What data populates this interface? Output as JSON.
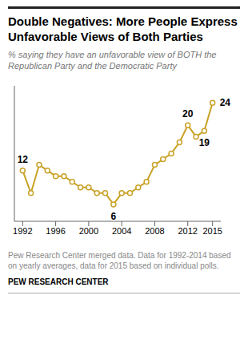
{
  "chart_data": {
    "type": "line",
    "title": "Double Negatives: More People Express Unfavorable Views of Both Parties",
    "subtitle": "% saying they have an unfavorable view of BOTH the Republican Party and the Democratic Party",
    "footnote": "Pew Research Center merged data. Data for 1992-2014 based on yearly averages, data for 2015 based on individual polls.",
    "source": "PEW RESEARCH CENTER",
    "color": "#C9A227",
    "marker": "circle",
    "x": [
      1992,
      1993,
      1994,
      1995,
      1996,
      1997,
      1998,
      1999,
      2000,
      2001,
      2002,
      2003,
      2004,
      2005,
      2006,
      2007,
      2008,
      2009,
      2010,
      2011,
      2012,
      2013,
      2014,
      2015
    ],
    "values": [
      12,
      8,
      13,
      12,
      11,
      11,
      10,
      9,
      9,
      8,
      8,
      6,
      8,
      8,
      9,
      10,
      13,
      14,
      15,
      17,
      20,
      18,
      19,
      24
    ],
    "annotations": [
      {
        "x": 1992,
        "y": 12,
        "text": "12"
      },
      {
        "x": 2003,
        "y": 6,
        "text": "6"
      },
      {
        "x": 2012,
        "y": 20,
        "text": "20"
      },
      {
        "x": 2014,
        "y": 19,
        "text": "19"
      },
      {
        "x": 2015,
        "y": 24,
        "text": "24"
      }
    ],
    "xlim": [
      1991.0,
      2016.0
    ],
    "ylim": [
      3,
      27
    ],
    "xticks": [
      1992,
      1996,
      2000,
      2004,
      2008,
      2012,
      2015
    ],
    "grid": false,
    "tick_labels": "x"
  }
}
